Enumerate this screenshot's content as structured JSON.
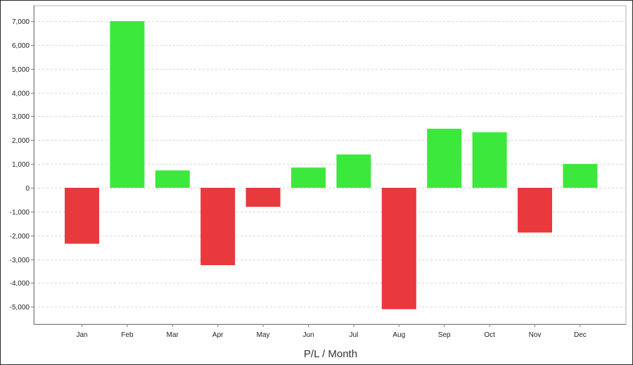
{
  "chart_data": {
    "type": "bar",
    "title": "",
    "xlabel": "P/L / Month",
    "ylabel": "",
    "categories": [
      "Jan",
      "Feb",
      "Mar",
      "Apr",
      "May",
      "Jun",
      "Jul",
      "Aug",
      "Sep",
      "Oct",
      "Nov",
      "Dec"
    ],
    "values": [
      -2350,
      7000,
      730,
      -3250,
      -800,
      850,
      1400,
      -5100,
      2480,
      2330,
      -1880,
      1000
    ],
    "ylim": [
      -5800,
      7800
    ],
    "yticks": [
      7000,
      6000,
      5000,
      4000,
      3000,
      2000,
      1000,
      0,
      -1000,
      -2000,
      -3000,
      -4000,
      -5000
    ],
    "ytick_labels": [
      "7,000",
      "6,000",
      "5,000",
      "4,000",
      "3,000",
      "2,000",
      "1,000",
      "0",
      "-1,000",
      "-2,000",
      "-3,000",
      "-4,000",
      "-5,000"
    ],
    "grid": true,
    "legend": false,
    "colors": {
      "positive": "#3de83d",
      "negative": "#e8393d",
      "grid": "#d6d6d6",
      "axis": "#808080",
      "plot_border": "#b0b0b0"
    }
  }
}
